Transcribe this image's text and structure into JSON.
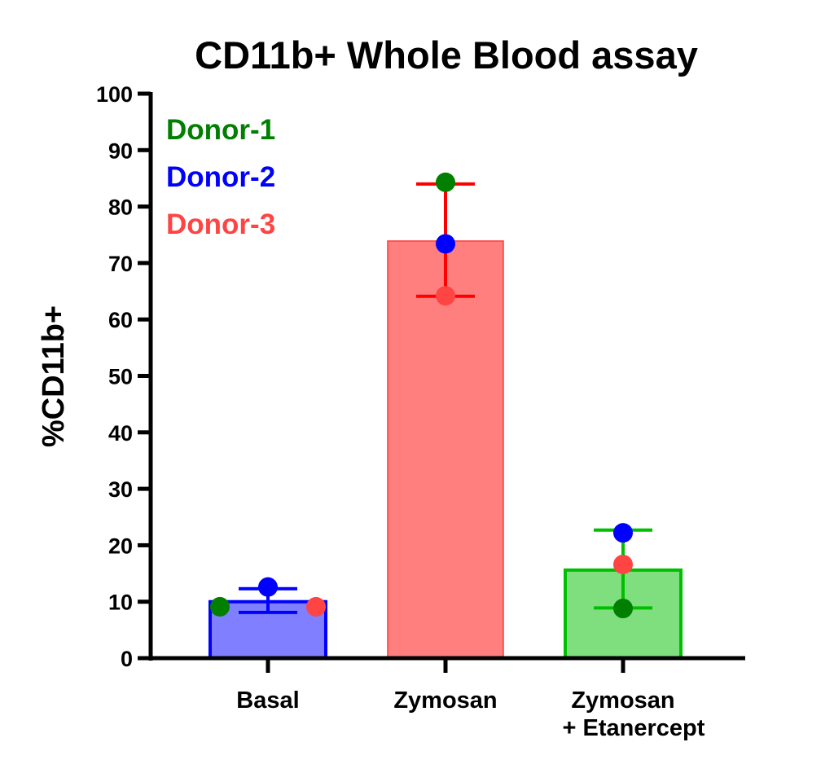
{
  "chart_data": {
    "type": "bar",
    "title": "CD11b+ Whole Blood assay",
    "xlabel": "",
    "ylabel": "%CD11b+",
    "ylim": [
      0,
      100
    ],
    "yticks": [
      0,
      10,
      20,
      30,
      40,
      50,
      60,
      70,
      80,
      90,
      100
    ],
    "grid": false,
    "categories": [
      {
        "lines": [
          "Basal"
        ]
      },
      {
        "lines": [
          "Zymosan"
        ]
      },
      {
        "lines": [
          "Zymosan",
          "+ Etanercept"
        ]
      }
    ],
    "bars": [
      {
        "mean": 10.0,
        "err_high": 12.3,
        "err_low": 8.1,
        "fill": "#7f7fff",
        "stroke": "#0000ff",
        "error_color": "#0000ff"
      },
      {
        "mean": 73.9,
        "err_high": 84.0,
        "err_low": 64.1,
        "fill": "#ff7f7f",
        "stroke": "#ff3a3a",
        "error_color": "#ff0000"
      },
      {
        "mean": 15.6,
        "err_high": 22.7,
        "err_low": 8.9,
        "fill": "#7fdf7f",
        "stroke": "#00bf00",
        "error_color": "#00bf00"
      }
    ],
    "series": [
      {
        "name": "Donor-1",
        "color": "#007f00",
        "values": [
          9.1,
          84.3,
          8.8
        ]
      },
      {
        "name": "Donor-2",
        "color": "#0000ff",
        "values": [
          12.6,
          73.4,
          22.2
        ]
      },
      {
        "name": "Donor-3",
        "color": "#ff4444",
        "values": [
          9.1,
          64.2,
          16.6
        ]
      }
    ],
    "point_offsets": [
      [
        -1,
        0,
        1
      ],
      [
        0,
        0,
        0
      ],
      [
        0,
        0,
        0
      ]
    ],
    "legend": {
      "placement": "top-left",
      "entries": [
        {
          "label": "Donor-1",
          "color": "#007f00"
        },
        {
          "label": "Donor-2",
          "color": "#0000ff"
        },
        {
          "label": "Donor-3",
          "color": "#ff4444"
        }
      ]
    }
  }
}
